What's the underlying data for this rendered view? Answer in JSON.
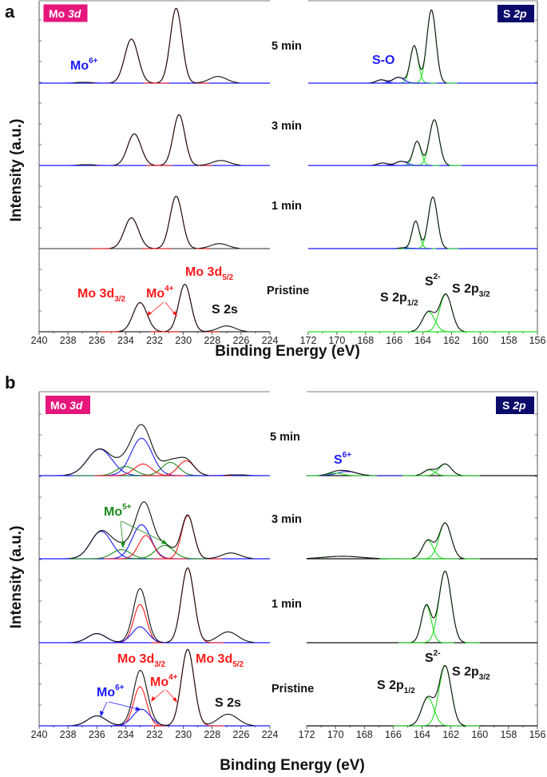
{
  "figure": {
    "panel_a": "a",
    "panel_b": "b",
    "ylabel": "Intensity (a.u.)",
    "xlabel": "Binding Energy (eV)"
  },
  "badges": {
    "mo": {
      "main": "Mo",
      "ital": "3d",
      "color": "#e6177c"
    },
    "s": {
      "main": "S",
      "ital": "2p",
      "color": "#0b0b6b"
    }
  },
  "colors": {
    "red": "#ff1a1a",
    "blue": "#1a1aff",
    "green": "#22dd22",
    "dkgreen": "#1a8a1a",
    "black": "#111111"
  },
  "annotations": {
    "a": {
      "mo6": {
        "main": "Mo",
        "sup": "6+"
      },
      "so": "S-O",
      "mo3d52": {
        "main": "Mo 3d",
        "sub": "5/2"
      },
      "mo3d32": {
        "main": "Mo 3d",
        "sub": "3/2"
      },
      "mo4": {
        "main": "Mo",
        "sup": "4+"
      },
      "s2s": "S 2s",
      "s2p12": {
        "main": "S 2p",
        "sub": "1/2"
      },
      "s2": {
        "main": "S",
        "sup": "2-"
      },
      "s2p32": {
        "main": "S 2p",
        "sub": "3/2"
      }
    },
    "b": {
      "mo5": {
        "main": "Mo",
        "sup": "5+"
      },
      "mo3d32": {
        "main": "Mo 3d",
        "sub": "3/2"
      },
      "mo3d52": {
        "main": "Mo 3d",
        "sub": "5/2"
      },
      "mo4": {
        "main": "Mo",
        "sup": "4+"
      },
      "mo6": {
        "main": "Mo",
        "sup": "6+"
      },
      "s2s": "S 2s",
      "s6": {
        "main": "S",
        "sup": "6+"
      },
      "s2p12": {
        "main": "S 2p",
        "sub": "1/2"
      },
      "s2": {
        "main": "S",
        "sup": "2-"
      },
      "s2p32": {
        "main": "S 2p",
        "sub": "3/2"
      }
    }
  },
  "chart_data": [
    {
      "panel": "a",
      "region": "Mo 3d",
      "type": "line",
      "xlim": [
        240,
        224
      ],
      "xticks": [
        240,
        238,
        236,
        234,
        232,
        230,
        228,
        226,
        224
      ],
      "xlabel": "Binding Energy (eV)",
      "ylabel": "Intensity (a.u.)",
      "stacks": [
        {
          "label": "5 min",
          "baseline_color": "#1a1aff",
          "components": [
            {
              "center": 230.5,
              "height": 0.9,
              "fwhm": 0.95,
              "color": "red"
            },
            {
              "center": 233.6,
              "height": 0.53,
              "fwhm": 1.1,
              "color": "red"
            },
            {
              "center": 227.6,
              "height": 0.08,
              "fwhm": 1.4,
              "color": "black"
            },
            {
              "center": 236.9,
              "height": 0.01,
              "fwhm": 1.2,
              "color": "blue"
            }
          ]
        },
        {
          "label": "3 min",
          "baseline_color": "#1a1aff",
          "components": [
            {
              "center": 230.3,
              "height": 0.61,
              "fwhm": 0.95,
              "color": "red"
            },
            {
              "center": 233.4,
              "height": 0.38,
              "fwhm": 1.1,
              "color": "red"
            },
            {
              "center": 227.4,
              "height": 0.06,
              "fwhm": 1.4,
              "color": "black"
            },
            {
              "center": 236.7,
              "height": 0.01,
              "fwhm": 1.2,
              "color": "blue"
            }
          ]
        },
        {
          "label": "1 min",
          "baseline_color": "#555555",
          "components": [
            {
              "center": 230.5,
              "height": 0.63,
              "fwhm": 1.0,
              "color": "red"
            },
            {
              "center": 233.6,
              "height": 0.37,
              "fwhm": 1.15,
              "color": "red"
            },
            {
              "center": 227.5,
              "height": 0.06,
              "fwhm": 1.4,
              "color": "black"
            }
          ]
        },
        {
          "label": "Pristine",
          "baseline_color": "#333333",
          "components": [
            {
              "center": 229.9,
              "height": 0.57,
              "fwhm": 1.0,
              "color": "red"
            },
            {
              "center": 233.0,
              "height": 0.35,
              "fwhm": 1.15,
              "color": "red"
            },
            {
              "center": 227.0,
              "height": 0.07,
              "fwhm": 1.4,
              "color": "black"
            }
          ]
        }
      ]
    },
    {
      "panel": "a",
      "region": "S 2p",
      "type": "line",
      "xlim": [
        172,
        156
      ],
      "xticks": [
        172,
        170,
        168,
        166,
        164,
        162,
        160,
        158,
        156
      ],
      "xlabel": "Binding Energy (eV)",
      "stacks": [
        {
          "label": "5 min",
          "baseline_color": "#1a1aff",
          "components": [
            {
              "center": 163.4,
              "height": 0.88,
              "fwhm": 0.75,
              "color": "green"
            },
            {
              "center": 164.6,
              "height": 0.45,
              "fwhm": 0.65,
              "color": "green"
            },
            {
              "center": 165.7,
              "height": 0.07,
              "fwhm": 0.9,
              "color": "blue"
            },
            {
              "center": 166.9,
              "height": 0.04,
              "fwhm": 0.8,
              "color": "blue"
            }
          ]
        },
        {
          "label": "3 min",
          "baseline_color": "#1a1aff",
          "components": [
            {
              "center": 163.2,
              "height": 0.55,
              "fwhm": 0.8,
              "color": "green"
            },
            {
              "center": 164.4,
              "height": 0.29,
              "fwhm": 0.65,
              "color": "green"
            },
            {
              "center": 165.5,
              "height": 0.05,
              "fwhm": 0.9,
              "color": "blue"
            },
            {
              "center": 166.8,
              "height": 0.03,
              "fwhm": 0.8,
              "color": "blue"
            }
          ]
        },
        {
          "label": "1 min",
          "baseline_color": "#1a1aff",
          "components": [
            {
              "center": 163.3,
              "height": 0.62,
              "fwhm": 0.75,
              "color": "green"
            },
            {
              "center": 164.5,
              "height": 0.33,
              "fwhm": 0.6,
              "color": "green"
            },
            {
              "center": 165.3,
              "height": 0.01,
              "fwhm": 0.8,
              "color": "blue"
            }
          ]
        },
        {
          "label": "Pristine",
          "baseline_color": "#22dd22",
          "components": [
            {
              "center": 162.4,
              "height": 0.45,
              "fwhm": 1.0,
              "color": "green"
            },
            {
              "center": 163.6,
              "height": 0.24,
              "fwhm": 1.0,
              "color": "green"
            }
          ]
        }
      ]
    },
    {
      "panel": "b",
      "region": "Mo 3d",
      "type": "line",
      "xlim": [
        240,
        224
      ],
      "xticks": [
        240,
        238,
        236,
        234,
        232,
        230,
        228,
        226,
        224
      ],
      "xlabel": "Binding Energy (eV)",
      "ylabel": "Intensity (a.u.)",
      "stacks": [
        {
          "label": "5 min",
          "baseline_color": "#1a1aff",
          "components": [
            {
              "center": 235.8,
              "height": 0.32,
              "fwhm": 2.0,
              "color": "blue"
            },
            {
              "center": 232.9,
              "height": 0.45,
              "fwhm": 1.7,
              "color": "blue"
            },
            {
              "center": 234.0,
              "height": 0.11,
              "fwhm": 1.5,
              "color": "dkgreen"
            },
            {
              "center": 230.9,
              "height": 0.16,
              "fwhm": 1.4,
              "color": "dkgreen"
            },
            {
              "center": 232.8,
              "height": 0.14,
              "fwhm": 1.4,
              "color": "red"
            },
            {
              "center": 229.8,
              "height": 0.18,
              "fwhm": 1.3,
              "color": "red"
            },
            {
              "center": 226.3,
              "height": 0.01,
              "fwhm": 1.5,
              "color": "blue"
            }
          ]
        },
        {
          "label": "3 min",
          "baseline_color": "#1a1aff",
          "components": [
            {
              "center": 235.7,
              "height": 0.33,
              "fwhm": 1.7,
              "color": "blue"
            },
            {
              "center": 232.9,
              "height": 0.41,
              "fwhm": 1.5,
              "color": "blue"
            },
            {
              "center": 234.3,
              "height": 0.11,
              "fwhm": 1.5,
              "color": "dkgreen"
            },
            {
              "center": 231.3,
              "height": 0.16,
              "fwhm": 1.5,
              "color": "dkgreen"
            },
            {
              "center": 232.6,
              "height": 0.28,
              "fwhm": 1.2,
              "color": "red"
            },
            {
              "center": 229.7,
              "height": 0.52,
              "fwhm": 1.0,
              "color": "red"
            },
            {
              "center": 226.7,
              "height": 0.07,
              "fwhm": 1.5,
              "color": "black"
            }
          ]
        },
        {
          "label": "1 min",
          "baseline_color": "#1a1aff",
          "components": [
            {
              "center": 229.7,
              "height": 0.9,
              "fwhm": 1.05,
              "color": "red"
            },
            {
              "center": 233.0,
              "height": 0.46,
              "fwhm": 1.05,
              "color": "red"
            },
            {
              "center": 233.0,
              "height": 0.19,
              "fwhm": 1.3,
              "color": "blue"
            },
            {
              "center": 236.0,
              "height": 0.11,
              "fwhm": 1.5,
              "color": "blue"
            },
            {
              "center": 226.9,
              "height": 0.13,
              "fwhm": 1.6,
              "color": "black"
            }
          ]
        },
        {
          "label": "Pristine",
          "baseline_color": "#1a1aff",
          "components": [
            {
              "center": 229.7,
              "height": 0.92,
              "fwhm": 1.05,
              "color": "red"
            },
            {
              "center": 233.0,
              "height": 0.47,
              "fwhm": 1.05,
              "color": "red"
            },
            {
              "center": 232.9,
              "height": 0.2,
              "fwhm": 1.4,
              "color": "blue"
            },
            {
              "center": 236.0,
              "height": 0.12,
              "fwhm": 1.5,
              "color": "blue"
            },
            {
              "center": 226.9,
              "height": 0.14,
              "fwhm": 1.6,
              "color": "black"
            }
          ]
        }
      ]
    },
    {
      "panel": "b",
      "region": "S 2p",
      "type": "line",
      "xlim": [
        172,
        156
      ],
      "xticks": [
        172,
        170,
        168,
        166,
        164,
        162,
        160,
        158,
        156
      ],
      "xlabel": "Binding Energy (eV)",
      "stacks": [
        {
          "label": "5 min",
          "baseline_color": "#111111",
          "components": [
            {
              "center": 162.4,
              "height": 0.14,
              "fwhm": 1.0,
              "color": "green"
            },
            {
              "center": 163.5,
              "height": 0.07,
              "fwhm": 0.9,
              "color": "green"
            },
            {
              "center": 169.2,
              "height": 0.05,
              "fwhm": 1.6,
              "color": "blue"
            },
            {
              "center": 170.0,
              "height": 0.03,
              "fwhm": 1.2,
              "color": "green"
            }
          ]
        },
        {
          "label": "3 min",
          "baseline_color": "#111111",
          "components": [
            {
              "center": 162.4,
              "height": 0.43,
              "fwhm": 1.0,
              "color": "green"
            },
            {
              "center": 163.6,
              "height": 0.22,
              "fwhm": 0.9,
              "color": "green"
            },
            {
              "center": 169.5,
              "height": 0.03,
              "fwhm": 3.0,
              "color": "green"
            }
          ]
        },
        {
          "label": "1 min",
          "baseline_color": "#111111",
          "components": [
            {
              "center": 162.4,
              "height": 0.86,
              "fwhm": 1.0,
              "color": "green"
            },
            {
              "center": 163.7,
              "height": 0.45,
              "fwhm": 0.8,
              "color": "green"
            }
          ]
        },
        {
          "label": "Pristine",
          "baseline_color": "#111111",
          "components": [
            {
              "center": 162.4,
              "height": 0.72,
              "fwhm": 1.0,
              "color": "green"
            },
            {
              "center": 163.6,
              "height": 0.34,
              "fwhm": 1.0,
              "color": "green"
            }
          ]
        }
      ]
    }
  ]
}
